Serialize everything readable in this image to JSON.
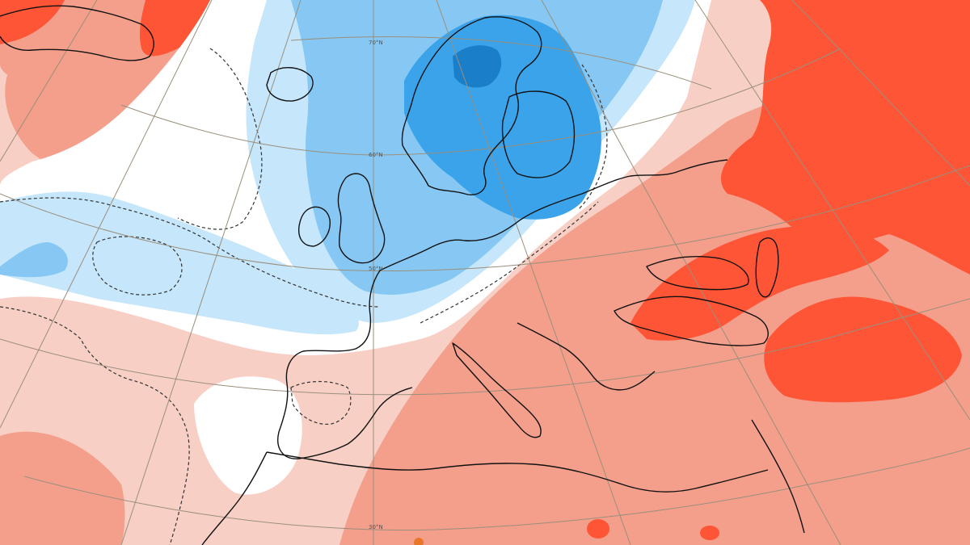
{
  "map": {
    "type": "temperature-anomaly-map",
    "region": "Europe / North Atlantic",
    "latitude_labels": [
      "70°N",
      "60°N",
      "50°N",
      "30°N"
    ],
    "colors": {
      "strong_cold": "#3aa3ea",
      "cold": "#86c8f3",
      "weak_cold": "#c5e6fb",
      "neutral": "#ffffff",
      "weak_warm": "#f8cfc5",
      "warm": "#f39f8b",
      "strong_warm": "#ff5537",
      "coastline": "#111111",
      "graticule": "#9a8f7c",
      "contour_dashed": "#333333"
    }
  }
}
